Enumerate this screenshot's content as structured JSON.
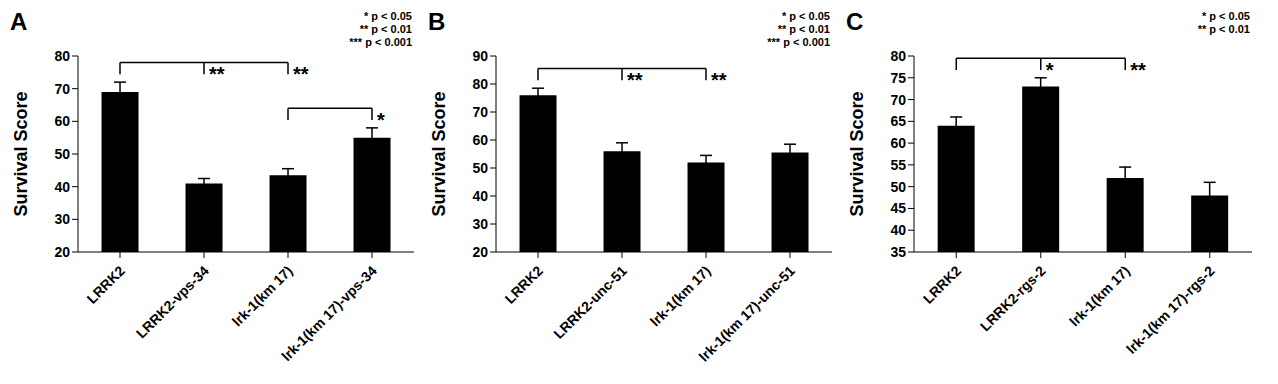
{
  "chart_data": [
    {
      "type": "bar",
      "title": "A",
      "y_label": "Survival Score",
      "categories": [
        "LRRK2",
        "LRRK2-vps-34",
        "lrk-1(km 17)",
        "lrk-1(km 17)-vps-34"
      ],
      "values": [
        69,
        41,
        43.5,
        55
      ],
      "errors": [
        3,
        1.5,
        2,
        3
      ],
      "color": "#000000",
      "ylim": [
        20,
        80
      ],
      "yticks": [
        20,
        30,
        40,
        50,
        60,
        70,
        80
      ],
      "annotations": [
        {
          "text": "**",
          "category_index": 1,
          "compared_to": 0
        },
        {
          "text": "**",
          "category_index": 2,
          "compared_to": 0
        },
        {
          "text": "*",
          "category_index": 3,
          "compared_to": 2
        }
      ],
      "notes": [
        "* p < 0.05",
        "** p < 0.01",
        "*** p < 0.001"
      ]
    },
    {
      "type": "bar",
      "title": "B",
      "y_label": "Survival Score",
      "categories": [
        "LRRK2",
        "LRRK2-unc-51",
        "lrk-1(km 17)",
        "lrk-1(km 17)-unc-51"
      ],
      "values": [
        76,
        56,
        52,
        55.5
      ],
      "errors": [
        2.5,
        3,
        2.5,
        3
      ],
      "color": "#000000",
      "ylim": [
        20,
        90
      ],
      "yticks": [
        20,
        30,
        40,
        50,
        60,
        70,
        80,
        90
      ],
      "annotations": [
        {
          "text": "**",
          "category_index": 1,
          "compared_to": 0
        },
        {
          "text": "**",
          "category_index": 2,
          "compared_to": 0
        }
      ],
      "notes": [
        "* p < 0.05",
        "** p < 0.01",
        "*** p < 0.001"
      ]
    },
    {
      "type": "bar",
      "title": "C",
      "y_label": "Survival Score",
      "categories": [
        "LRRK2",
        "LRRK2-rgs-2",
        "lrk-1(km 17)",
        "lrk-1(km 17)-rgs-2"
      ],
      "values": [
        64,
        73,
        52,
        48
      ],
      "errors": [
        2,
        2,
        2.5,
        3
      ],
      "color": "#000000",
      "ylim": [
        35,
        80
      ],
      "yticks": [
        35,
        40,
        45,
        50,
        55,
        60,
        65,
        70,
        75,
        80
      ],
      "annotations": [
        {
          "text": "*",
          "category_index": 1,
          "compared_to": 0
        },
        {
          "text": "**",
          "category_index": 2,
          "compared_to": 0
        }
      ],
      "notes": [
        "* p < 0.05",
        "** p < 0.01"
      ]
    }
  ]
}
